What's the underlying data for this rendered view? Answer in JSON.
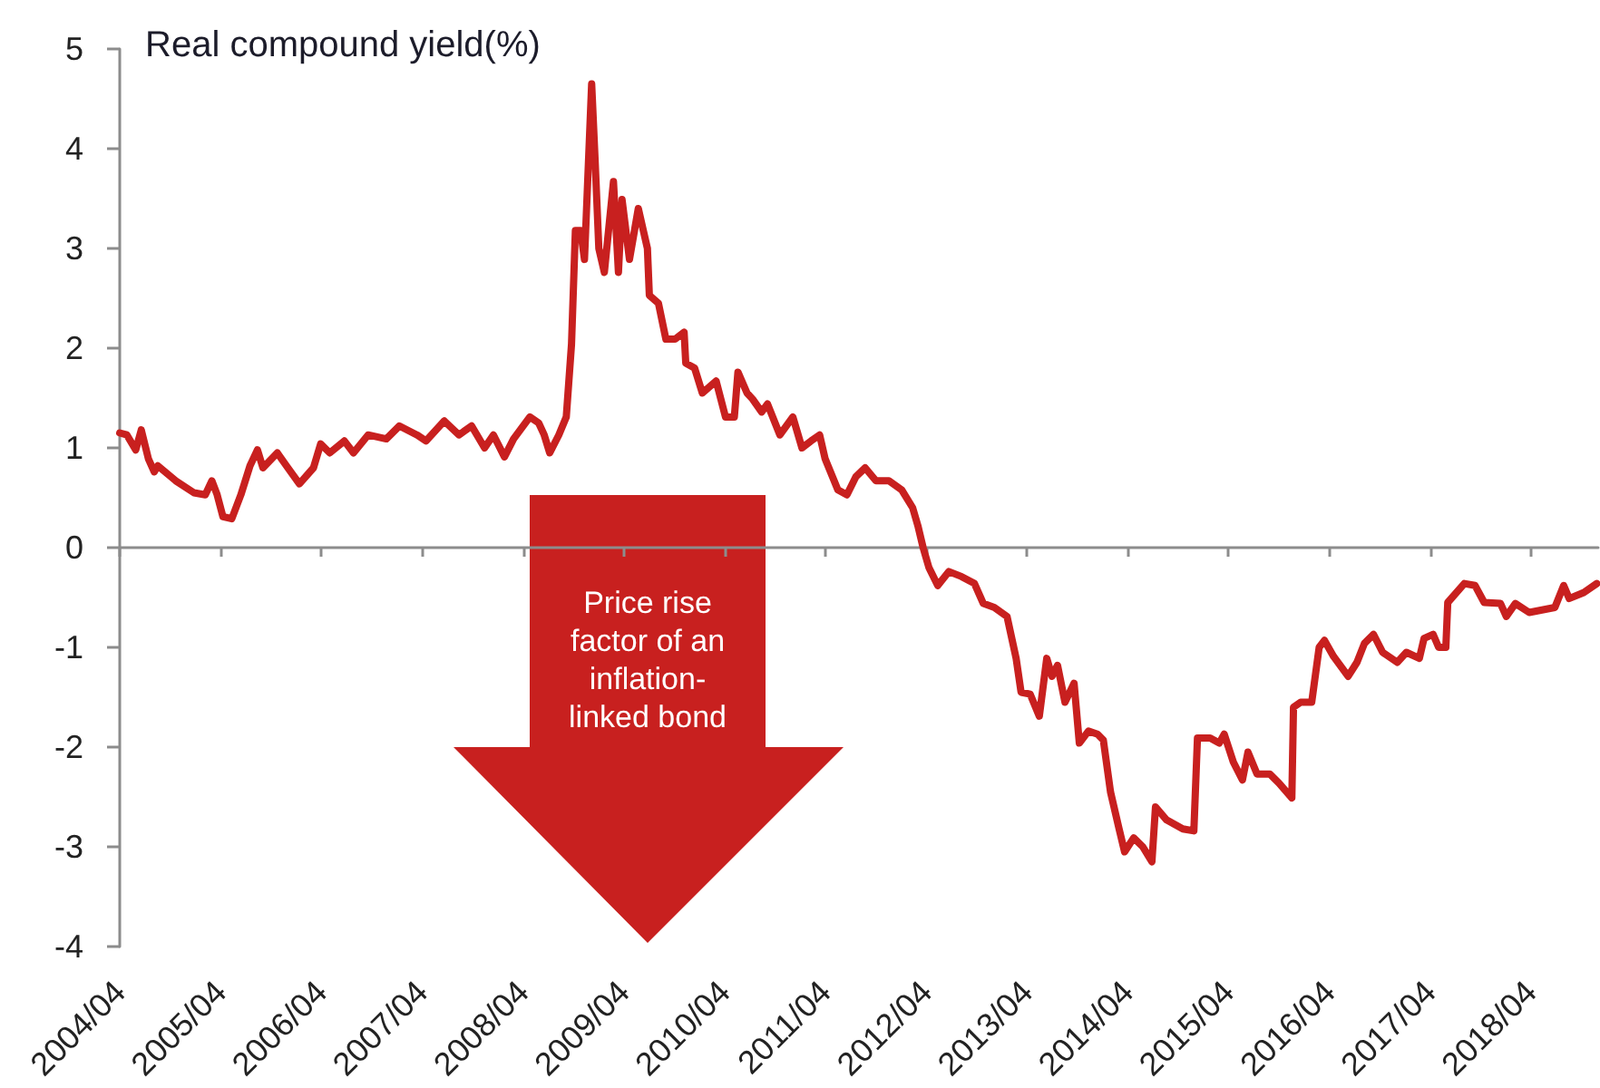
{
  "chart_data": {
    "type": "line",
    "ylabel": "Real compound yield(%)",
    "annotations": [
      "Price rise factor of an inflation-linked bond"
    ],
    "color": "#c8201f",
    "marker": "none",
    "xlim": [
      "2004-04-01",
      "2018-12-01"
    ],
    "xticks": [
      {
        "value": "2004-04",
        "label": "2004/04"
      },
      {
        "value": "2005-04",
        "label": "2005/04"
      },
      {
        "value": "2006-04",
        "label": "2006/04"
      },
      {
        "value": "2007-04",
        "label": "2007/04"
      },
      {
        "value": "2008-04",
        "label": "2008/04"
      },
      {
        "value": "2009-04",
        "label": "2009/04"
      },
      {
        "value": "2010-04",
        "label": "2010/04"
      },
      {
        "value": "2011-04",
        "label": "2011/04"
      },
      {
        "value": "2012-04",
        "label": "2012/04"
      },
      {
        "value": "2013-04",
        "label": "2013/04"
      },
      {
        "value": "2014-04",
        "label": "2014/04"
      },
      {
        "value": "2015-04",
        "label": "2015/04"
      },
      {
        "value": "2016-04",
        "label": "2016/04"
      },
      {
        "value": "2017-04",
        "label": "2017/04"
      },
      {
        "value": "2018-04",
        "label": "2018/04"
      }
    ],
    "ylim": [
      -4,
      5
    ],
    "yticks": [
      -4,
      -3,
      -2,
      -1,
      0,
      1,
      2,
      3,
      4,
      5
    ],
    "x": [
      "2004-04-01",
      "2004-04-27",
      "2004-05-29",
      "2004-06-18",
      "2004-07-14",
      "2004-08-04",
      "2004-08-17",
      "2004-10-21",
      "2004-12-26",
      "2005-02-05",
      "2005-03-01",
      "2005-03-20",
      "2005-04-10",
      "2005-05-12",
      "2005-06-14",
      "2005-07-17",
      "2005-08-13",
      "2005-09-02",
      "2005-10-24",
      "2005-11-26",
      "2006-01-12",
      "2006-03-04",
      "2006-03-30",
      "2006-05-02",
      "2006-06-24",
      "2006-07-27",
      "2006-09-18",
      "2006-11-23",
      "2007-01-09",
      "2007-03-14",
      "2007-04-16",
      "2007-06-21",
      "2007-08-13",
      "2007-09-28",
      "2007-11-14",
      "2007-12-16",
      "2008-01-25",
      "2008-02-27",
      "2008-04-26",
      "2008-05-28",
      "2008-06-17",
      "2008-07-07",
      "2008-08-09",
      "2008-09-05",
      "2008-09-24",
      "2008-10-08",
      "2008-10-27",
      "2008-11-10",
      "2008-12-06",
      "2008-12-19",
      "2009-01-01",
      "2009-01-21",
      "2009-02-23",
      "2009-03-13",
      "2009-03-26",
      "2009-04-22",
      "2009-05-24",
      "2009-06-26",
      "2009-07-03",
      "2009-08-05",
      "2009-09-01",
      "2009-10-04",
      "2009-11-06",
      "2009-11-12",
      "2009-12-14",
      "2010-01-11",
      "2010-03-02",
      "2010-04-05",
      "2010-05-07",
      "2010-05-20",
      "2010-06-22",
      "2010-07-12",
      "2010-08-14",
      "2010-09-04",
      "2010-10-19",
      "2010-12-05",
      "2011-01-07",
      "2011-02-09",
      "2011-03-12",
      "2011-04-01",
      "2011-05-17",
      "2011-06-19",
      "2011-07-21",
      "2011-08-24",
      "2011-10-02",
      "2011-11-18",
      "2012-01-03",
      "2012-02-12",
      "2012-03-02",
      "2012-03-21",
      "2012-04-11",
      "2012-05-13",
      "2012-06-22",
      "2012-08-07",
      "2012-09-23",
      "2012-10-25",
      "2012-12-04",
      "2013-01-19",
      "2013-02-21",
      "2013-03-11",
      "2013-04-13",
      "2013-05-16",
      "2013-06-12",
      "2013-07-01",
      "2013-07-21",
      "2013-08-17",
      "2013-09-19",
      "2013-10-08",
      "2013-11-10",
      "2013-12-13",
      "2014-01-03",
      "2014-01-29",
      "2014-03-01",
      "2014-03-21",
      "2014-04-23",
      "2014-05-26",
      "2014-06-28",
      "2014-07-11",
      "2014-08-20",
      "2014-10-18",
      "2014-11-27",
      "2014-12-10",
      "2015-01-25",
      "2015-02-27",
      "2015-03-17",
      "2015-04-19",
      "2015-05-22",
      "2015-06-11",
      "2015-07-14",
      "2015-08-29",
      "2015-10-01",
      "2015-11-17",
      "2015-11-23",
      "2015-12-19",
      "2016-01-28",
      "2016-02-24",
      "2016-03-14",
      "2016-04-16",
      "2016-06-08",
      "2016-07-10",
      "2016-08-06",
      "2016-09-08",
      "2016-10-11",
      "2016-12-03",
      "2017-01-05",
      "2017-02-21",
      "2017-03-10",
      "2017-04-12",
      "2017-05-02",
      "2017-05-28",
      "2017-06-04",
      "2017-08-03",
      "2017-09-11",
      "2017-10-14",
      "2017-12-12",
      "2018-01-02",
      "2018-02-04",
      "2018-03-26",
      "2018-06-27",
      "2018-07-29",
      "2018-08-18",
      "2018-10-10",
      "2018-11-26"
    ],
    "values": [
      1.15,
      1.13,
      0.98,
      1.18,
      0.89,
      0.76,
      0.82,
      0.67,
      0.55,
      0.53,
      0.67,
      0.53,
      0.31,
      0.29,
      0.53,
      0.82,
      0.98,
      0.8,
      0.95,
      0.82,
      0.64,
      0.8,
      1.04,
      0.95,
      1.07,
      0.95,
      1.13,
      1.09,
      1.22,
      1.13,
      1.07,
      1.27,
      1.13,
      1.22,
      1.0,
      1.13,
      0.91,
      1.09,
      1.31,
      1.25,
      1.13,
      0.95,
      1.13,
      1.31,
      2.04,
      3.18,
      3.18,
      2.89,
      4.65,
      3.85,
      3.0,
      2.76,
      3.67,
      2.76,
      3.49,
      2.89,
      3.4,
      3.0,
      2.53,
      2.45,
      2.09,
      2.09,
      2.16,
      1.85,
      1.8,
      1.55,
      1.67,
      1.31,
      1.31,
      1.76,
      1.55,
      1.49,
      1.36,
      1.44,
      1.13,
      1.31,
      1.0,
      1.07,
      1.13,
      0.89,
      0.58,
      0.53,
      0.71,
      0.8,
      0.67,
      0.67,
      0.58,
      0.4,
      0.22,
      0.0,
      -0.2,
      -0.38,
      -0.24,
      -0.29,
      -0.36,
      -0.56,
      -0.6,
      -0.69,
      -1.11,
      -1.45,
      -1.47,
      -1.69,
      -1.11,
      -1.29,
      -1.18,
      -1.55,
      -1.36,
      -1.96,
      -1.84,
      -1.87,
      -1.93,
      -2.45,
      -2.82,
      -3.05,
      -2.91,
      -3.0,
      -3.15,
      -2.6,
      -2.73,
      -2.82,
      -2.84,
      -1.91,
      -1.91,
      -1.96,
      -1.87,
      -2.15,
      -2.33,
      -2.05,
      -2.27,
      -2.27,
      -2.36,
      -2.51,
      -1.6,
      -1.55,
      -1.55,
      -1.0,
      -0.93,
      -1.09,
      -1.29,
      -1.15,
      -0.96,
      -0.87,
      -1.05,
      -1.15,
      -1.05,
      -1.11,
      -0.91,
      -0.87,
      -1.0,
      -1.0,
      -0.55,
      -0.36,
      -0.38,
      -0.55,
      -0.56,
      -0.69,
      -0.56,
      -0.65,
      -0.6,
      -0.38,
      -0.51,
      -0.45,
      -0.36
    ]
  }
}
